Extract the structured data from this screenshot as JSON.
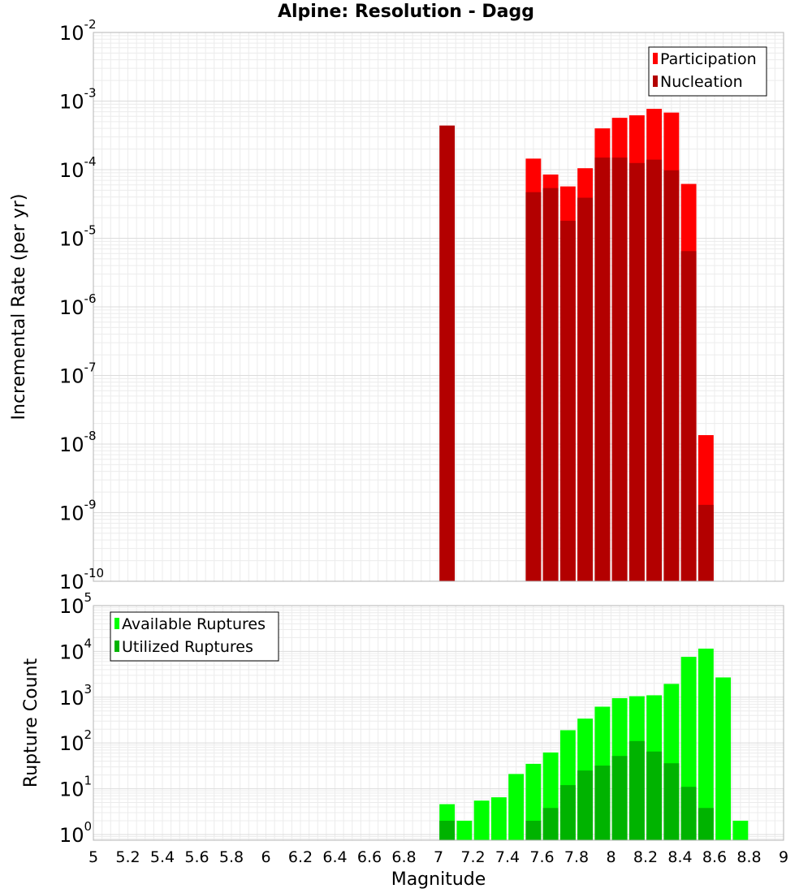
{
  "chart_data": [
    {
      "type": "bar",
      "title": "Alpine: Resolution - Dagg",
      "ylabel": "Incremental Rate (per yr)",
      "xlabel": "",
      "y_scale": "log",
      "ylim": [
        1e-10,
        0.01
      ],
      "xlim": [
        5,
        9
      ],
      "yticks": [
        {
          "base": "10",
          "exp": "-10",
          "value": 1e-10
        },
        {
          "base": "10",
          "exp": "-9",
          "value": 1e-09
        },
        {
          "base": "10",
          "exp": "-8",
          "value": 1e-08
        },
        {
          "base": "10",
          "exp": "-7",
          "value": 1e-07
        },
        {
          "base": "10",
          "exp": "-6",
          "value": 1e-06
        },
        {
          "base": "10",
          "exp": "-5",
          "value": 1e-05
        },
        {
          "base": "10",
          "exp": "-4",
          "value": 0.0001
        },
        {
          "base": "10",
          "exp": "-3",
          "value": 0.001
        },
        {
          "base": "10",
          "exp": "-2",
          "value": 0.01
        }
      ],
      "legend_position": "top-right",
      "grid": true,
      "bar_width": 0.1,
      "series": [
        {
          "name": "Participation",
          "color": "#ff0000",
          "x": [
            7.55,
            7.65,
            7.75,
            7.85,
            7.95,
            8.05,
            8.15,
            8.25,
            8.35,
            8.45,
            8.55
          ],
          "values": [
            0.000145,
            8.5e-05,
            5.7e-05,
            0.000105,
            0.0004,
            0.00057,
            0.00062,
            0.00077,
            0.00068,
            6.2e-05,
            1.35e-08
          ]
        },
        {
          "name": "Nucleation",
          "color": "#b30000",
          "x": [
            7.05,
            7.55,
            7.65,
            7.75,
            7.85,
            7.95,
            8.05,
            8.15,
            8.25,
            8.35,
            8.45,
            8.55
          ],
          "values": [
            0.00044,
            4.7e-05,
            5.4e-05,
            1.8e-05,
            3.9e-05,
            0.00015,
            0.00015,
            0.000125,
            0.00014,
            9.8e-05,
            6.5e-06,
            1.3e-09
          ]
        }
      ]
    },
    {
      "type": "bar",
      "title": "",
      "ylabel": "Rupture Count",
      "xlabel": "Magnitude",
      "y_scale": "log",
      "ylim": [
        0.75,
        100000.0
      ],
      "xlim": [
        5,
        9
      ],
      "xticks": [
        "5",
        "5.2",
        "5.4",
        "5.6",
        "5.8",
        "6",
        "6.2",
        "6.4",
        "6.6",
        "6.8",
        "7",
        "7.2",
        "7.4",
        "7.6",
        "7.8",
        "8",
        "8.2",
        "8.4",
        "8.6",
        "8.8",
        "9"
      ],
      "yticks": [
        {
          "base": "10",
          "exp": "0",
          "value": 1
        },
        {
          "base": "10",
          "exp": "1",
          "value": 10
        },
        {
          "base": "10",
          "exp": "2",
          "value": 100
        },
        {
          "base": "10",
          "exp": "3",
          "value": 1000
        },
        {
          "base": "10",
          "exp": "4",
          "value": 10000
        },
        {
          "base": "10",
          "exp": "5",
          "value": 100000
        }
      ],
      "legend_position": "top-left",
      "grid": true,
      "bar_width": 0.1,
      "series": [
        {
          "name": "Available Ruptures",
          "color": "#00ff00",
          "x": [
            7.05,
            7.15,
            7.25,
            7.35,
            7.45,
            7.55,
            7.65,
            7.75,
            7.85,
            7.95,
            8.05,
            8.15,
            8.25,
            8.35,
            8.45,
            8.55,
            8.65,
            8.75
          ],
          "values": [
            4.6,
            2,
            5.5,
            6.5,
            21,
            35,
            62,
            190,
            340,
            620,
            950,
            1050,
            1100,
            1950,
            7600,
            11500,
            2700,
            2
          ]
        },
        {
          "name": "Utilized Ruptures",
          "color": "#00b300",
          "x": [
            7.05,
            7.55,
            7.65,
            7.75,
            7.85,
            7.95,
            8.05,
            8.15,
            8.25,
            8.35,
            8.45,
            8.55
          ],
          "values": [
            2,
            2,
            3.8,
            12,
            25,
            32,
            52,
            110,
            65,
            36,
            11,
            3.8
          ]
        }
      ]
    }
  ]
}
